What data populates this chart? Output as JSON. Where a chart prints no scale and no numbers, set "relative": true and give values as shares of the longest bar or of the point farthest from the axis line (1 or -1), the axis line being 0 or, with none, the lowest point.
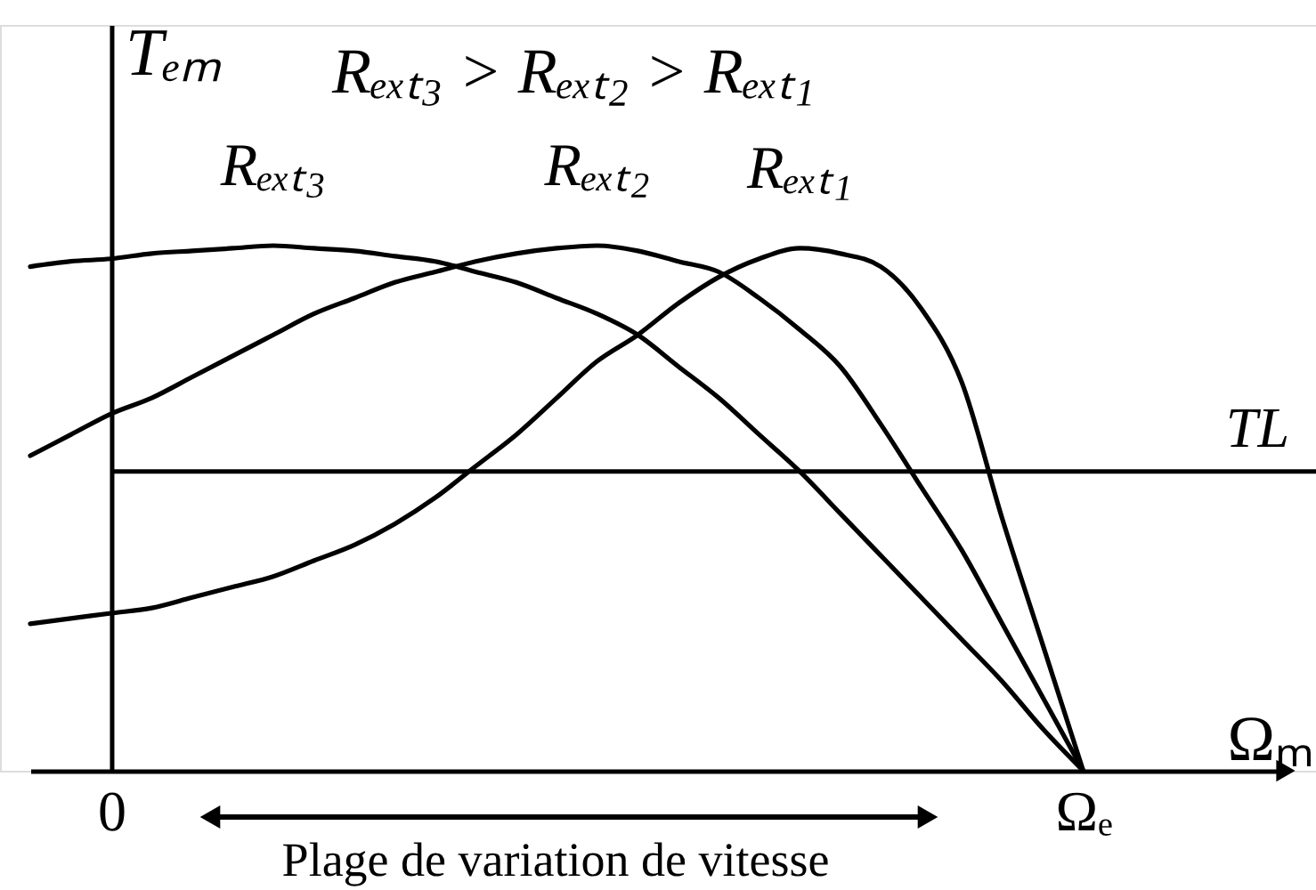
{
  "chart_data": {
    "type": "line",
    "relative": true,
    "title": "Rₑₓₜ₃ > Rₑₓₜ₂ > Rₑₓₜ₁",
    "xlabel": "Ωₘ",
    "ylabel": "Tₑₘ",
    "tick_labels": "x",
    "categories": [
      null,
      null,
      "0",
      null,
      null,
      null,
      null,
      null,
      null,
      null,
      null,
      null,
      null,
      null,
      null,
      null,
      null,
      null,
      null,
      null,
      null,
      null,
      null,
      null,
      null,
      null,
      "Ωₑ",
      null,
      null,
      null,
      null,
      null
    ],
    "series": [
      {
        "name": "Rₑₓₜ₃",
        "color": "#000000",
        "values": [
          0.96,
          0.97,
          0.975,
          0.985,
          0.99,
          0.995,
          1,
          0.995,
          0.99,
          0.98,
          0.97,
          0.95,
          0.93,
          0.9,
          0.87,
          0.83,
          0.77,
          0.71,
          0.64,
          0.57,
          0.49,
          0.41,
          0.33,
          0.25,
          0.17,
          0.08,
          0,
          null,
          null,
          null,
          null,
          null
        ]
      },
      {
        "name": "Rₑₓₜ₂",
        "color": "#000000",
        "values": [
          0.6,
          0.64,
          0.68,
          0.71,
          0.75,
          0.79,
          0.83,
          0.87,
          0.9,
          0.93,
          0.95,
          0.97,
          0.985,
          0.995,
          1,
          0.99,
          0.97,
          0.95,
          0.9,
          0.84,
          0.77,
          0.66,
          0.54,
          0.42,
          0.28,
          0.14,
          0,
          null,
          null,
          null,
          null,
          null
        ]
      },
      {
        "name": "Rₑₓₜ₁",
        "color": "#000000",
        "values": [
          0.28,
          0.29,
          0.3,
          0.31,
          0.33,
          0.35,
          0.37,
          0.4,
          0.43,
          0.47,
          0.52,
          0.58,
          0.64,
          0.71,
          0.78,
          0.83,
          0.89,
          0.94,
          0.975,
          0.995,
          0.985,
          0.96,
          0.88,
          0.74,
          0.48,
          0.24,
          0,
          null,
          null,
          null,
          null,
          null
        ]
      }
    ],
    "ref_lines": [
      {
        "axis": "y",
        "value": 0.57,
        "label": "TL",
        "color": "#000000"
      }
    ],
    "annotations": [
      "Plage de variation de vitesse"
    ]
  }
}
